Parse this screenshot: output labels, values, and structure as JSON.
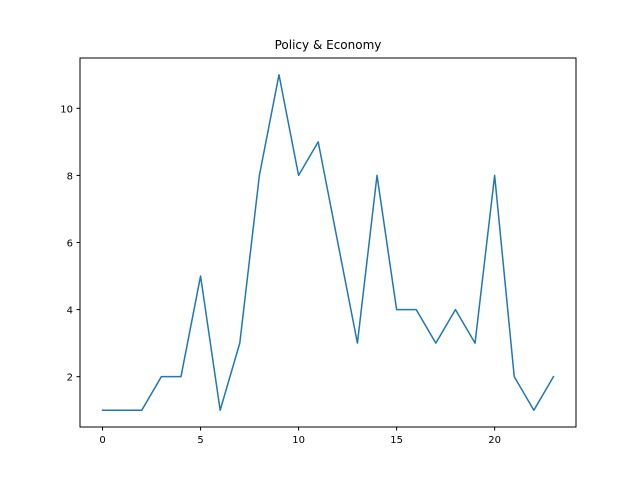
{
  "chart_data": {
    "type": "line",
    "title": "Policy & Economy",
    "xlabel": "",
    "ylabel": "",
    "x": [
      0,
      1,
      2,
      3,
      4,
      5,
      6,
      7,
      8,
      9,
      10,
      11,
      12,
      13,
      14,
      15,
      16,
      17,
      18,
      19,
      20,
      21,
      22,
      23
    ],
    "series": [
      {
        "values": [
          1,
          1,
          1,
          2,
          2,
          5,
          1,
          3,
          8,
          11,
          8,
          9,
          6,
          3,
          8,
          4,
          4,
          3,
          4,
          3,
          8,
          2,
          1,
          2
        ],
        "color": "#1f77b4"
      }
    ],
    "xlim": [
      -1.15,
      24.15
    ],
    "ylim": [
      0.5,
      11.5
    ],
    "xticks": [
      0,
      5,
      10,
      15,
      20
    ],
    "yticks": [
      2,
      4,
      6,
      8,
      10
    ],
    "grid": false,
    "legend": "none"
  }
}
